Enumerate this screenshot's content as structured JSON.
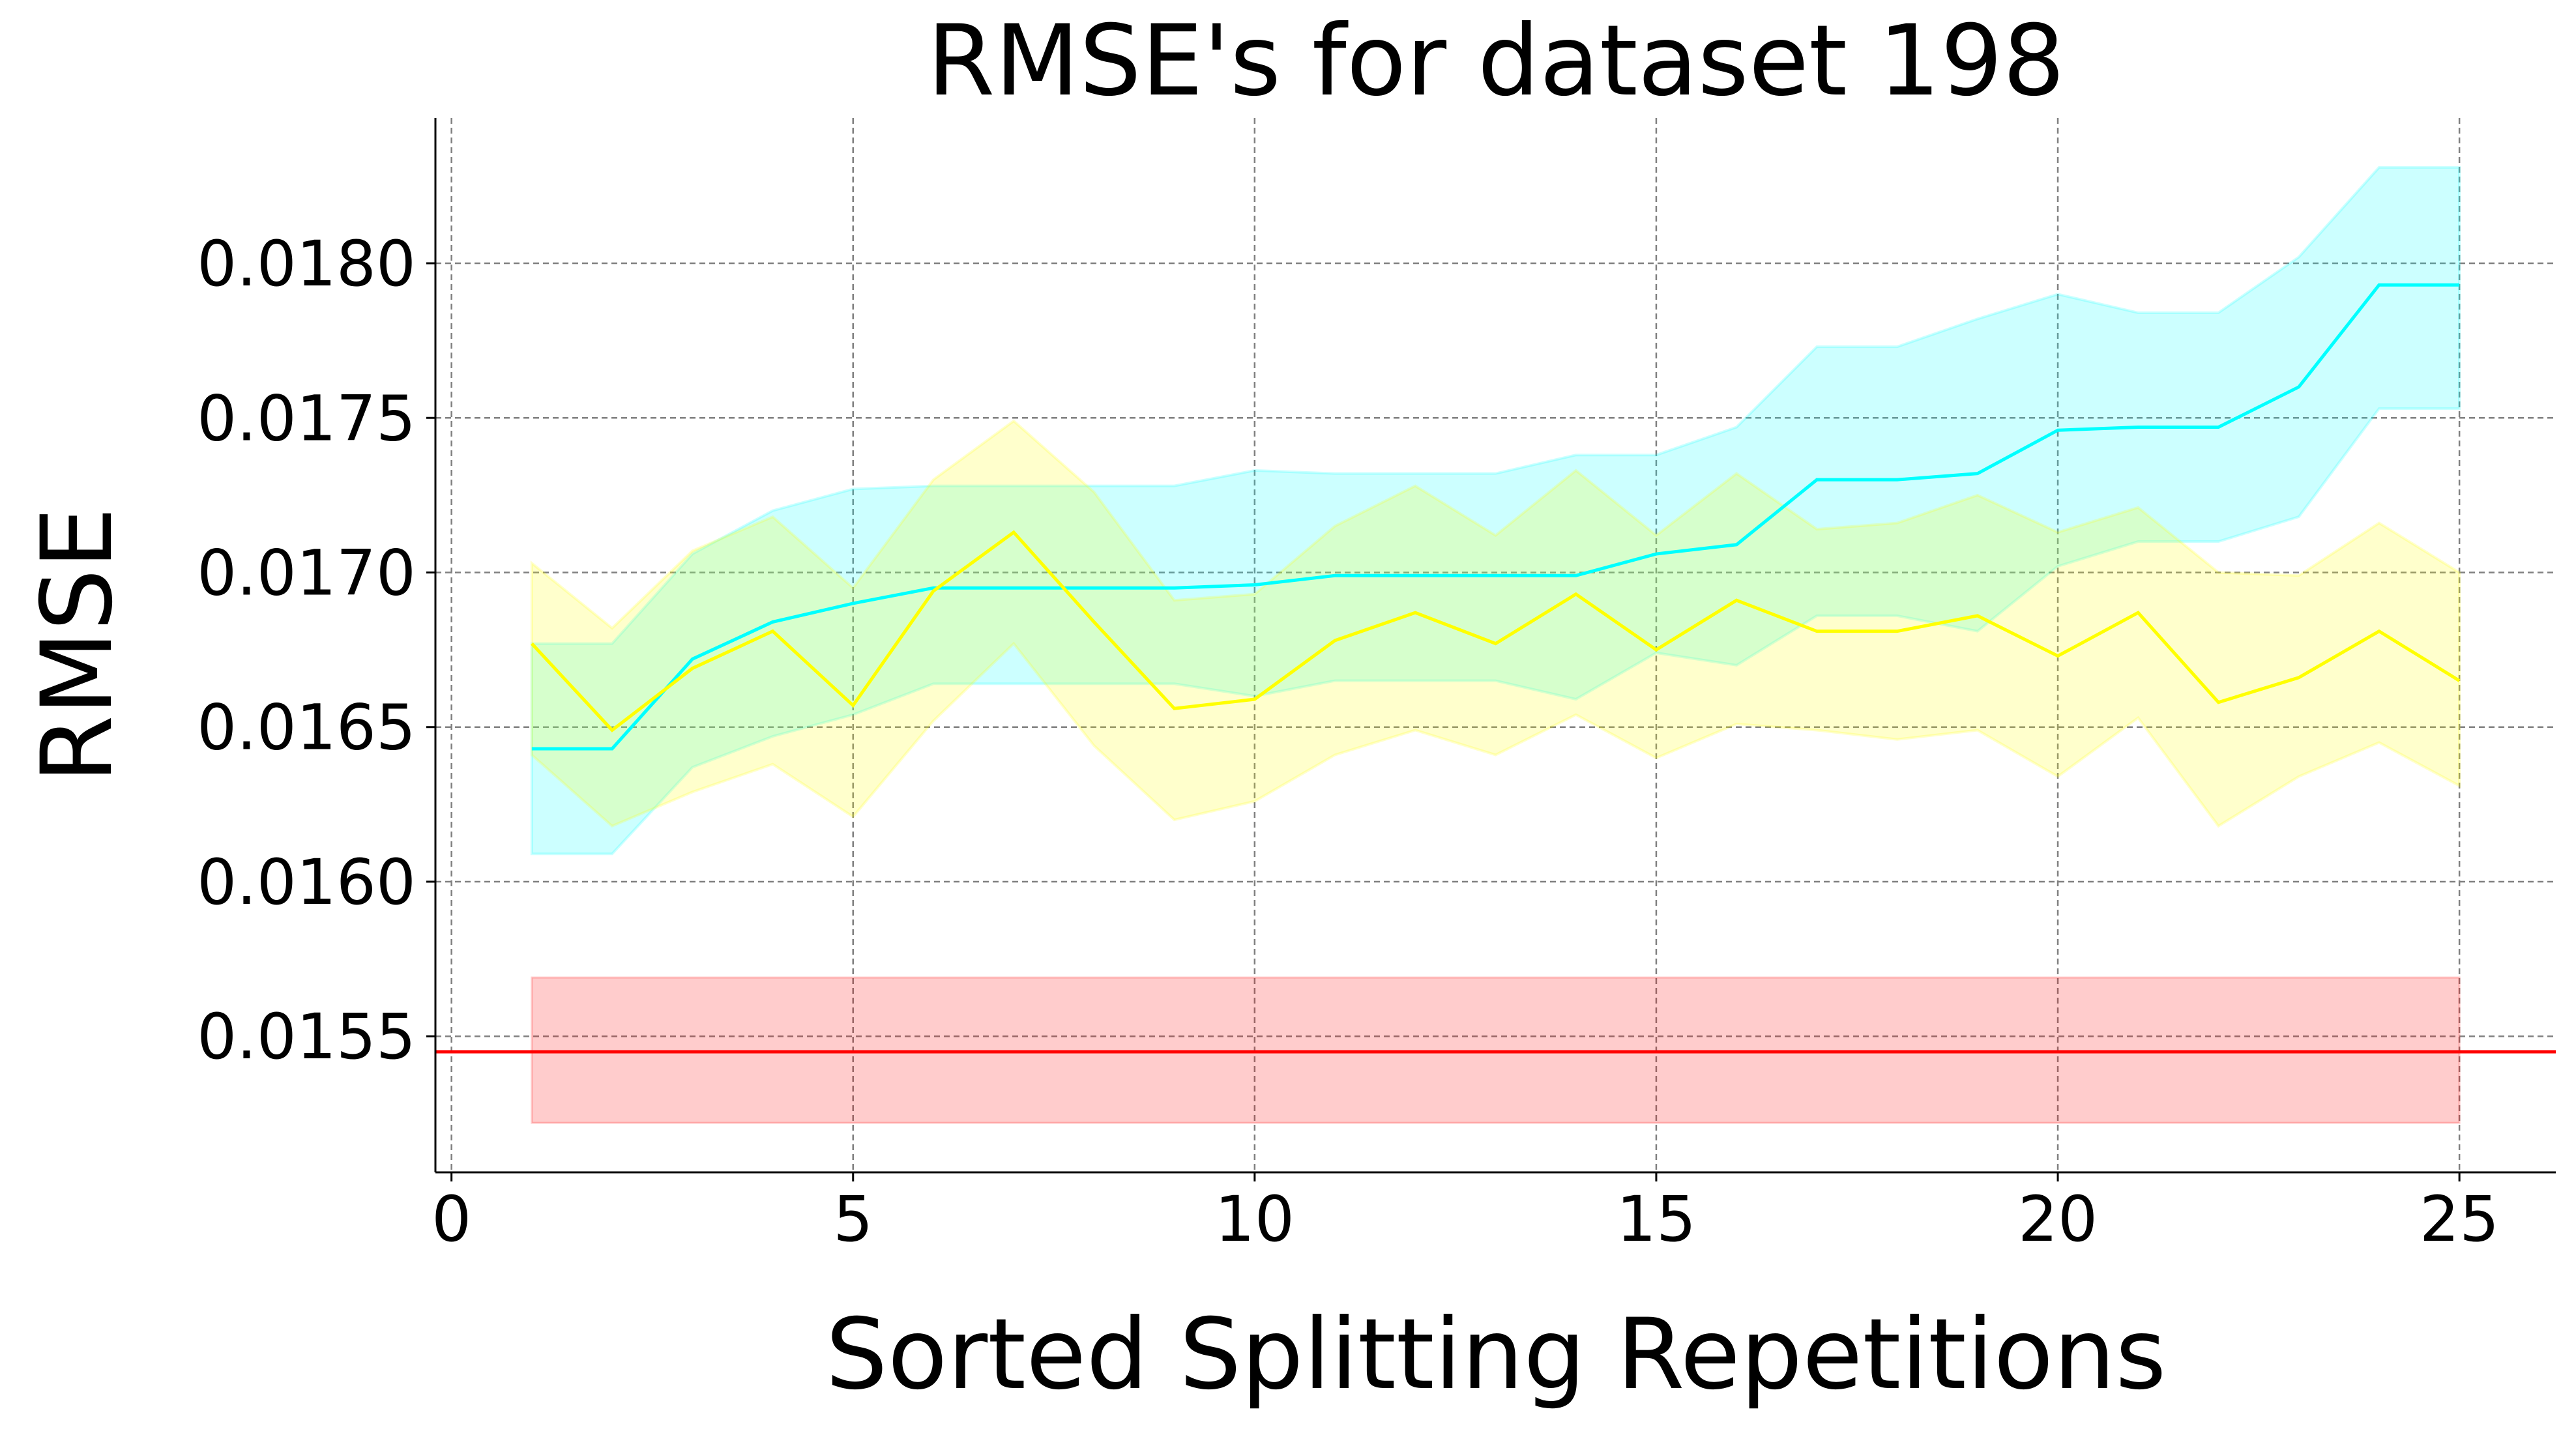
{
  "chart_data": {
    "type": "line",
    "title": "RMSE's for dataset 198",
    "xlabel": "Sorted Splitting Repetitions",
    "ylabel": "RMSE",
    "xlim": [
      -0.2,
      26.2
    ],
    "ylim": [
      0.01506,
      0.01847
    ],
    "xticks": [
      0,
      5,
      10,
      15,
      20,
      25
    ],
    "yticks": [
      0.0155,
      0.016,
      0.0165,
      0.017,
      0.0175,
      0.018
    ],
    "ytick_labels": [
      "0.0155",
      "0.0160",
      "0.0165",
      "0.0170",
      "0.0175",
      "0.0180"
    ],
    "xtick_labels": [
      "0",
      "5",
      "10",
      "15",
      "20",
      "25"
    ],
    "grid": true,
    "x": [
      1,
      2,
      3,
      4,
      5,
      6,
      7,
      8,
      9,
      10,
      11,
      12,
      13,
      14,
      15,
      16,
      17,
      18,
      19,
      20,
      21,
      22,
      23,
      24,
      25
    ],
    "series": [
      {
        "color": "#00ffff",
        "values": [
          0.01643,
          0.01643,
          0.01672,
          0.01684,
          0.0169,
          0.01695,
          0.01695,
          0.01695,
          0.01695,
          0.01696,
          0.01699,
          0.01699,
          0.01699,
          0.01699,
          0.01706,
          0.01709,
          0.0173,
          0.0173,
          0.01732,
          0.01746,
          0.01747,
          0.01747,
          0.0176,
          0.01793,
          0.01793
        ],
        "upper": [
          0.01677,
          0.01677,
          0.01706,
          0.0172,
          0.01727,
          0.01728,
          0.01728,
          0.01728,
          0.01728,
          0.01733,
          0.01732,
          0.01732,
          0.01732,
          0.01738,
          0.01738,
          0.01747,
          0.01773,
          0.01773,
          0.01782,
          0.0179,
          0.01784,
          0.01784,
          0.01802,
          0.01831,
          0.01831
        ],
        "lower": [
          0.01609,
          0.01609,
          0.01637,
          0.01647,
          0.01654,
          0.01664,
          0.01664,
          0.01664,
          0.01664,
          0.0166,
          0.01665,
          0.01665,
          0.01665,
          0.01659,
          0.01674,
          0.0167,
          0.01686,
          0.01686,
          0.01681,
          0.01702,
          0.0171,
          0.0171,
          0.01718,
          0.01753,
          0.01753
        ]
      },
      {
        "color": "#ffff00",
        "values": [
          0.01677,
          0.01649,
          0.01669,
          0.01681,
          0.01657,
          0.01694,
          0.01713,
          0.01684,
          0.01656,
          0.01659,
          0.01678,
          0.01687,
          0.01677,
          0.01693,
          0.01675,
          0.01691,
          0.01681,
          0.01681,
          0.01686,
          0.01673,
          0.01687,
          0.01658,
          0.01666,
          0.01681,
          0.01665
        ],
        "upper": [
          0.01703,
          0.01682,
          0.01707,
          0.01718,
          0.01695,
          0.0173,
          0.01749,
          0.01726,
          0.01691,
          0.01693,
          0.01715,
          0.01728,
          0.01712,
          0.01733,
          0.01712,
          0.01732,
          0.01714,
          0.01716,
          0.01725,
          0.01713,
          0.01721,
          0.017,
          0.01699,
          0.01716,
          0.017
        ],
        "lower": [
          0.01641,
          0.01618,
          0.01629,
          0.01638,
          0.01621,
          0.01652,
          0.01677,
          0.01644,
          0.0162,
          0.01626,
          0.01641,
          0.01649,
          0.01641,
          0.01654,
          0.0164,
          0.01651,
          0.01649,
          0.01646,
          0.01649,
          0.01634,
          0.01653,
          0.01618,
          0.01634,
          0.01645,
          0.01631
        ]
      }
    ],
    "reference": {
      "color": "#ff0000",
      "value": 0.01545,
      "band": [
        0.01522,
        0.01569
      ],
      "band_x": [
        1,
        25
      ]
    }
  }
}
